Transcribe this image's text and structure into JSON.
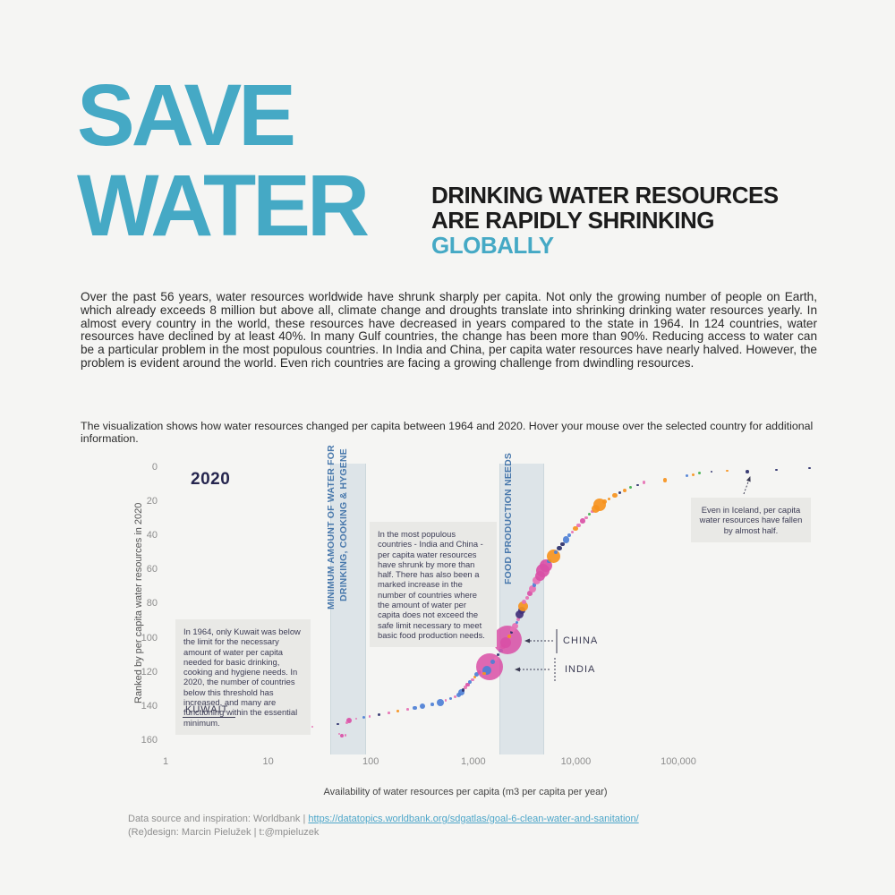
{
  "header": {
    "title_line1": "SAVE",
    "title_line2": "WATER",
    "title_color": "#45a9c5",
    "subtitle_line1": "DRINKING WATER RESOURCES",
    "subtitle_line2": "ARE RAPIDLY SHRINKING",
    "subtitle_line3": "GLOBALLY"
  },
  "intro_text": "Over the past 56 years, water resources worldwide have shrunk sharply per capita. Not only the growing number of people on Earth, which already exceeds 8 million but above all, climate change and droughts translate into shrinking drinking water resources yearly. In almost every country in the world, these resources have decreased in years compared to the state in 1964. In 124 countries, water resources have declined by at least 40%. In many Gulf countries, the change has been more than 90%. Reducing access to water can be a particular problem in the most populous countries. In India and China, per capita water resources have nearly halved. However, the problem is evident around the world. Even rich countries are facing a growing challenge from dwindling resources.",
  "caption_text": "The visualization shows how water resources changed per capita between 1964 and 2020. Hover your mouse over the selected country for additional information.",
  "chart_data": {
    "type": "scatter",
    "title": "2020",
    "ylabel": "Ranked by per capita water resources in 2020",
    "xlabel": "Availability of water resources per capita (m3 per capita per year)",
    "x_scale": "log",
    "x_ticks": [
      "1",
      "10",
      "100",
      "1,000",
      "10,000",
      "100,000"
    ],
    "y_ticks": [
      0,
      20,
      40,
      60,
      80,
      100,
      120,
      140,
      160
    ],
    "grid": false,
    "legend": "none",
    "bands": [
      {
        "label_line1": "MINIMUM AMOUNT OF WATER FOR",
        "label_line2": "DRINKING, COOKING & HYGENE",
        "from_m3": 40,
        "to_m3": 90
      },
      {
        "label_line1": "FOOD PRODUCTION NEEDS",
        "label_line2": "",
        "from_m3": 1800,
        "to_m3": 4900
      }
    ],
    "annotations": {
      "kuwait": "In 1964, only Kuwait was below the limit for the necessary amount of water per capita needed for basic drinking, cooking and hygiene needs. In 2020, the number of countries below this threshold has increased, and many are functioning within the essential minimum.",
      "populous": "In the most populous countries - India and China - per capita water resources have shrunk by more than half. There has also been a marked increase in the number of countries where the amount of water per capita does not exceed the safe limit necessary to meet basic food production needs.",
      "iceland": "Even in Iceland, per capita water resources have fallen by almost half."
    },
    "country_labels": {
      "kuwait": "KUWAIT",
      "china": "CHINA",
      "india": "INDIA"
    },
    "colors": {
      "m": "#d94fa6",
      "p": "#e671b4",
      "o": "#f6921e",
      "b": "#4d7fd6",
      "n": "#2b2f6b",
      "g": "#3faf4c",
      "v": "#41307a"
    },
    "point_format": [
      "m3_per_capita",
      "rank_2020",
      "color_key",
      "radius_px"
    ],
    "points": [
      [
        2.6,
        154,
        "m",
        1.5
      ],
      [
        11,
        152,
        "p",
        1.3
      ],
      [
        14,
        153,
        "m",
        1.3
      ],
      [
        21,
        150.5,
        "p",
        1.3
      ],
      [
        27,
        151.5,
        "p",
        1.2
      ],
      [
        48,
        150,
        "n",
        1.3
      ],
      [
        52,
        157,
        "m",
        2
      ],
      [
        57,
        156.5,
        "p",
        1.3
      ],
      [
        49,
        156,
        "p",
        1.2
      ],
      [
        62,
        148,
        "m",
        3
      ],
      [
        58,
        149,
        "p",
        1.5
      ],
      [
        72,
        147,
        "p",
        1.3
      ],
      [
        85,
        146,
        "b",
        1.5
      ],
      [
        98,
        145.5,
        "p",
        1.3
      ],
      [
        120,
        144.5,
        "n",
        1.5
      ],
      [
        150,
        143.5,
        "p",
        1.3
      ],
      [
        185,
        142.5,
        "o",
        1.4
      ],
      [
        230,
        141.5,
        "p",
        1.3
      ],
      [
        270,
        140.5,
        "b",
        2.2
      ],
      [
        320,
        139.5,
        "b",
        3.2
      ],
      [
        400,
        138.5,
        "b",
        1.8
      ],
      [
        480,
        137.5,
        "b",
        4
      ],
      [
        540,
        136,
        "p",
        1.4
      ],
      [
        600,
        135,
        "b",
        1.8
      ],
      [
        660,
        134,
        "p",
        1.5
      ],
      [
        720,
        133,
        "b",
        2.8
      ],
      [
        760,
        131.5,
        "b",
        3.6
      ],
      [
        800,
        130,
        "n",
        1.8
      ],
      [
        840,
        128.5,
        "p",
        1.8
      ],
      [
        880,
        127,
        "m",
        2.2
      ],
      [
        930,
        125.5,
        "b",
        2.2
      ],
      [
        980,
        124,
        "p",
        1.8
      ],
      [
        1030,
        122.5,
        "o",
        1.6
      ],
      [
        1080,
        121,
        "b",
        2.6
      ],
      [
        1140,
        119.5,
        "p",
        1.8
      ],
      [
        1450,
        116.5,
        "m",
        15
      ],
      [
        1350,
        118.5,
        "b",
        5
      ],
      [
        1280,
        120.5,
        "o",
        1.8
      ],
      [
        1550,
        113.5,
        "b",
        2.4
      ],
      [
        1650,
        111.5,
        "p",
        2
      ],
      [
        1750,
        109.5,
        "n",
        1.8
      ],
      [
        1850,
        107,
        "b",
        2.2
      ],
      [
        1950,
        104.5,
        "p",
        2.6
      ],
      [
        2150,
        100.5,
        "m",
        16
      ],
      [
        2050,
        102.5,
        "m",
        6
      ],
      [
        2250,
        98.5,
        "o",
        2
      ],
      [
        2350,
        96.5,
        "n",
        1.6
      ],
      [
        2450,
        94.5,
        "p",
        3
      ],
      [
        2550,
        92.5,
        "p",
        3.6
      ],
      [
        2650,
        90.5,
        "b",
        1.8
      ],
      [
        2750,
        88.5,
        "p",
        2
      ],
      [
        2850,
        86,
        "v",
        4.5
      ],
      [
        2950,
        83.5,
        "v",
        4
      ],
      [
        3050,
        81,
        "o",
        5.5
      ],
      [
        3150,
        78.5,
        "p",
        2.6
      ],
      [
        3350,
        76,
        "p",
        2.2
      ],
      [
        3550,
        73.5,
        "m",
        2.8
      ],
      [
        3750,
        71,
        "p",
        4
      ],
      [
        3950,
        68.5,
        "b",
        2.2
      ],
      [
        4150,
        66,
        "p",
        4.6
      ],
      [
        4450,
        63,
        "m",
        5.5
      ],
      [
        4750,
        60,
        "m",
        7.5
      ],
      [
        5100,
        57,
        "m",
        7
      ],
      [
        5500,
        54.5,
        "b",
        2.2
      ],
      [
        6000,
        51.5,
        "o",
        7.5
      ],
      [
        6400,
        49.5,
        "b",
        2.2
      ],
      [
        6900,
        47,
        "n",
        2.8
      ],
      [
        7400,
        44.5,
        "n",
        2.2
      ],
      [
        8000,
        42,
        "b",
        3.8
      ],
      [
        8600,
        39.5,
        "b",
        2.2
      ],
      [
        9200,
        37.5,
        "p",
        1.8
      ],
      [
        9900,
        35.5,
        "o",
        2.8
      ],
      [
        10600,
        33.5,
        "p",
        2.4
      ],
      [
        11600,
        31,
        "m",
        2.8
      ],
      [
        12600,
        29,
        "p",
        1.8
      ],
      [
        13600,
        27,
        "g",
        1.6
      ],
      [
        14600,
        25.5,
        "p",
        1.8
      ],
      [
        15600,
        24,
        "o",
        4.5
      ],
      [
        17200,
        21.5,
        "o",
        7
      ],
      [
        19000,
        19.5,
        "o",
        2.4
      ],
      [
        21000,
        18,
        "o",
        1.8
      ],
      [
        24000,
        16,
        "o",
        2.6
      ],
      [
        27000,
        14.5,
        "n",
        1.6
      ],
      [
        30000,
        13,
        "o",
        2.2
      ],
      [
        34000,
        11.5,
        "g",
        1.6
      ],
      [
        40000,
        10,
        "n",
        1.4
      ],
      [
        46000,
        8.5,
        "p",
        1.8
      ],
      [
        74000,
        7,
        "o",
        2.4
      ],
      [
        120000,
        4.5,
        "b",
        1.6
      ],
      [
        140000,
        4,
        "o",
        1.6
      ],
      [
        160000,
        3,
        "g",
        1.5
      ],
      [
        210000,
        2,
        "n",
        1.2
      ],
      [
        300000,
        1.5,
        "o",
        1.3
      ],
      [
        470000,
        2,
        "n",
        1.8
      ],
      [
        900000,
        1,
        "n",
        1.3
      ],
      [
        1900000,
        0,
        "n",
        1.4
      ]
    ],
    "highlighted_countries": {
      "kuwait": {
        "m3": 2.6,
        "rank": 154
      },
      "india": {
        "m3": 1450,
        "rank": 117
      },
      "china": {
        "m3": 2150,
        "rank": 101
      },
      "iceland": {
        "m3": 470000,
        "rank": 2
      }
    }
  },
  "footer": {
    "source_prefix": "Data source and inspiration: Worldbank | ",
    "source_link": "https://datatopics.worldbank.org/sdgatlas/goal-6-clean-water-and-sanitation/",
    "credit_line": "(Re)design: Marcin Pielužek | t:@mpieluzek"
  }
}
